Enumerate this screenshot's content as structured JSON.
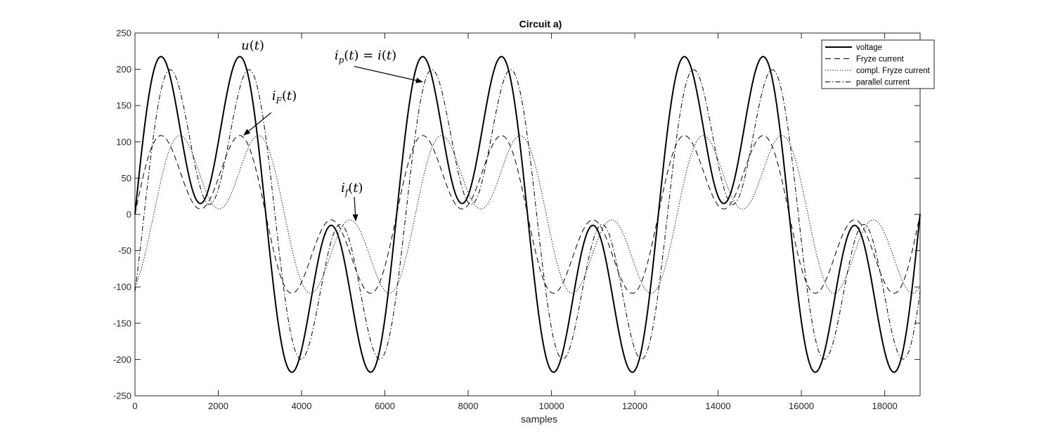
{
  "chart_data": {
    "type": "line",
    "title": "Circuit a)",
    "xlabel": "samples",
    "ylabel": "",
    "xlim": [
      0,
      18850
    ],
    "ylim": [
      -250,
      250
    ],
    "xticks": [
      0,
      2000,
      4000,
      6000,
      8000,
      10000,
      12000,
      14000,
      16000,
      18000
    ],
    "yticks": [
      -250,
      -200,
      -150,
      -100,
      -50,
      0,
      50,
      100,
      150,
      200,
      250
    ],
    "grid": false,
    "legend_position": "top-right",
    "period_samples": 6283,
    "series": [
      {
        "name": "voltage",
        "style": "solid",
        "peak": 217.5,
        "phase": 0,
        "harmonic_mix": 0.9
      },
      {
        "name": "Fryze current",
        "style": "dashed",
        "peak": 108.7,
        "phase": 0,
        "harmonic_mix": 0.9
      },
      {
        "name": "compl. Fryze current",
        "style": "dotted",
        "peak": 108.7,
        "phase": 0.45,
        "harmonic_mix": 0.9
      },
      {
        "name": "parallel current",
        "style": "dashdot",
        "peak": 199.5,
        "phase": 0.22,
        "harmonic_mix": 0.9
      }
    ],
    "annotations": [
      {
        "label": "u(t)",
        "target_series": "voltage",
        "at_x": 2500
      },
      {
        "label": "i_F(t)",
        "target_series": "Fryze current",
        "at_x": 2580
      },
      {
        "label": "i_f(t)",
        "target_series": "compl. Fryze current",
        "at_x": 5300
      },
      {
        "label": "i_p(t) = i(t)",
        "target_series": "parallel current",
        "at_x": 6950
      }
    ]
  }
}
